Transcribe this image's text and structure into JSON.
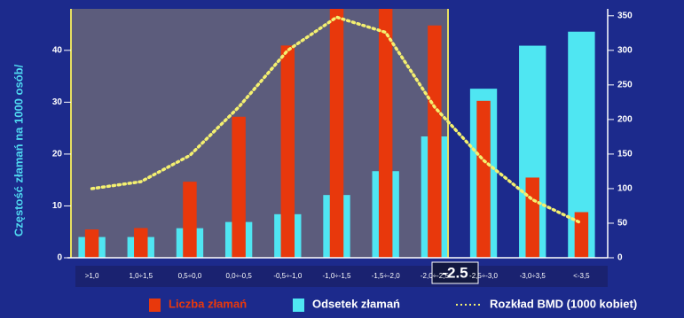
{
  "chart_data": {
    "type": "bar",
    "y_label": "Częstość złamań na 1000 osób/",
    "categories": [
      ">1,0",
      "1,0÷1,5",
      "0,5÷0,0",
      "0,0÷-0,5",
      "-0,5÷-1,0",
      "-1,0÷-1,5",
      "-1,5÷-2,0",
      "-2,0÷-2,5",
      "-2,5÷-3,0",
      "-3,0÷3,5",
      "<-3,5"
    ],
    "threshold_label": "-2.5",
    "series": [
      {
        "name": "Odsetek złamań",
        "color": "#4fe6f2",
        "values": [
          4.0,
          4.0,
          5.7,
          6.9,
          8.4,
          12.1,
          16.7,
          23.4,
          32.6,
          40.9,
          43.6
        ]
      },
      {
        "name": "Liczba złamań",
        "color": "#e8380c",
        "axis": "y2",
        "values": [
          41,
          43,
          110,
          204,
          307,
          365,
          365,
          336,
          227,
          116,
          66
        ]
      },
      {
        "name": "Rozkład BMD (1000 kobiet)",
        "type": "line",
        "color": "#f4f070",
        "axis": "y2",
        "values": [
          100,
          110,
          148,
          218,
          300,
          348,
          326,
          218,
          141,
          84,
          50
        ]
      }
    ],
    "ylim": [
      0,
      48
    ],
    "yticks": [
      0,
      10,
      20,
      30,
      40
    ],
    "y2lim": [
      0,
      360
    ],
    "y2ticks": [
      0,
      50,
      100,
      150,
      200,
      250,
      300,
      350
    ]
  }
}
